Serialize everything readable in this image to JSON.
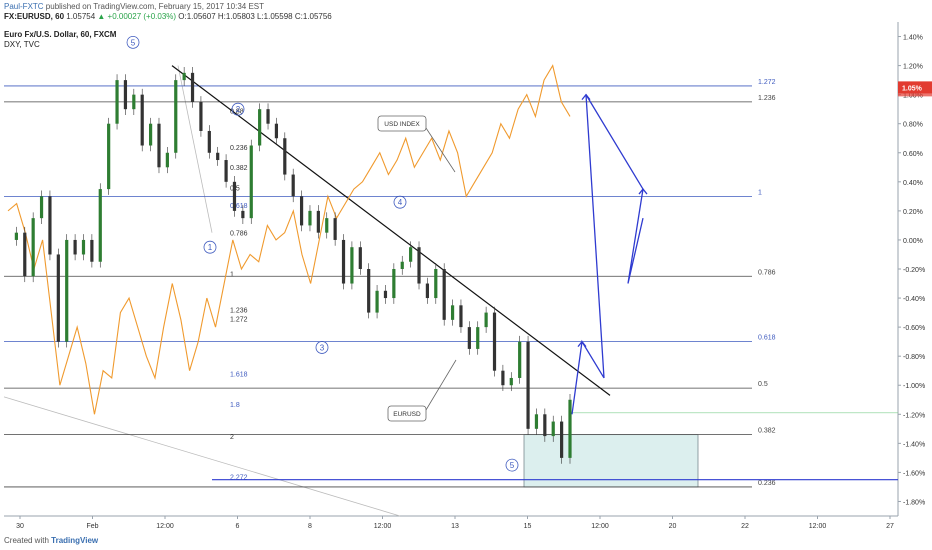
{
  "header": {
    "author": "Paul-FXTC",
    "published": "published on TradingView.com, February 15, 2017 10:34 EST",
    "symbol": "FX:EURUSD, 60",
    "last": "1.05754",
    "change": "▲ +0.00027 (+0.03%)",
    "ohlc": "O:1.05607 H:1.05803 L:1.05598 C:1.05756",
    "title": "Euro Fx/U.S. Dollar, 60, FXCM",
    "overlay": "DXY, TVC"
  },
  "footer": {
    "created_with": "Created with",
    "brand": "TradingView"
  },
  "chart_data": {
    "type": "line",
    "scale": "percent",
    "y_axis_ticks": [
      "1.40%",
      "1.20%",
      "1.00%",
      "0.80%",
      "0.60%",
      "0.40%",
      "0.20%",
      "0.00%",
      "-0.20%",
      "-0.40%",
      "-0.60%",
      "-0.80%",
      "-1.00%",
      "-1.20%",
      "-1.40%",
      "-1.60%",
      "-1.80%"
    ],
    "ylim": [
      -1.9,
      1.5
    ],
    "last_price_label": "1.05%",
    "last_price_value": 1.05,
    "x_axis_ticks": [
      "30",
      "Feb",
      "12:00",
      "6",
      "8",
      "12:00",
      "13",
      "15",
      "12:00",
      "20",
      "22",
      "12:00",
      "27"
    ],
    "fib_levels_right": [
      {
        "label": "1.272",
        "value": 1.06,
        "color": "#3f5bbf"
      },
      {
        "label": "1.236",
        "value": 0.95,
        "color": "#444444"
      },
      {
        "label": "1",
        "value": 0.3,
        "color": "#3f5bbf"
      },
      {
        "label": "0.786",
        "value": -0.25,
        "color": "#444444"
      },
      {
        "label": "0.618",
        "value": -0.7,
        "color": "#3f5bbf"
      },
      {
        "label": "0.5",
        "value": -1.02,
        "color": "#444444"
      },
      {
        "label": "0.382",
        "value": -1.34,
        "color": "#444444"
      },
      {
        "label": "0.236",
        "value": -1.7,
        "color": "#444444"
      }
    ],
    "fib_levels_left": [
      {
        "label": "0.88",
        "value": 0.87
      },
      {
        "label": "0.236",
        "value": 0.62
      },
      {
        "label": "0.382",
        "value": 0.48
      },
      {
        "label": "0.5",
        "value": 0.34
      },
      {
        "label": "0.618",
        "value": 0.22
      },
      {
        "label": "0.786",
        "value": 0.03
      },
      {
        "label": "1",
        "value": -0.25
      },
      {
        "label": "1.236",
        "value": -0.5
      },
      {
        "label": "1.272",
        "value": -0.56
      },
      {
        "label": "1.618",
        "value": -0.94
      },
      {
        "label": "1.8",
        "value": -1.15
      },
      {
        "label": "2",
        "value": -1.37
      },
      {
        "label": "2.272",
        "value": -1.65
      }
    ],
    "wave_labels": [
      {
        "label": "5",
        "x_index": 13,
        "value": 1.36
      },
      {
        "label": "2",
        "x_index": 24,
        "value": 0.9
      },
      {
        "label": "1",
        "x_index": 21,
        "value": -0.05
      },
      {
        "label": "3",
        "x_index": 32,
        "value": -0.74
      },
      {
        "label": "4",
        "x_index": 40,
        "value": 0.26
      },
      {
        "label": "5",
        "x_index": 51,
        "value": -1.55
      }
    ],
    "annotations": [
      "USD INDEX",
      "EURUSD"
    ],
    "series": [
      {
        "name": "EURUSD",
        "color": "#2e7d32",
        "values": [
          0.0,
          0.05,
          -0.25,
          0.15,
          0.3,
          -0.1,
          -0.7,
          0.0,
          -0.1,
          0.0,
          -0.15,
          0.35,
          0.8,
          1.1,
          0.9,
          1.0,
          0.65,
          0.8,
          0.5,
          0.6,
          1.1,
          1.15,
          0.95,
          0.75,
          0.6,
          0.55,
          0.4,
          0.2,
          0.15,
          0.65,
          0.9,
          0.8,
          0.7,
          0.45,
          0.3,
          0.1,
          0.2,
          0.05,
          0.15,
          0.0,
          -0.3,
          -0.05,
          -0.2,
          -0.5,
          -0.35,
          -0.4,
          -0.2,
          -0.15,
          -0.05,
          -0.3,
          -0.4,
          -0.2,
          -0.55,
          -0.45,
          -0.6,
          -0.75,
          -0.6,
          -0.5,
          -0.9,
          -1.0,
          -0.95,
          -0.7,
          -1.3,
          -1.2,
          -1.35,
          -1.25,
          -1.5,
          -1.1
        ]
      },
      {
        "name": "USD INDEX",
        "color": "#f09a2e",
        "values": [
          0.2,
          0.25,
          0.05,
          -0.2,
          0.0,
          -0.5,
          -1.0,
          -0.8,
          -0.6,
          -0.85,
          -1.2,
          -0.9,
          -0.95,
          -0.5,
          -0.4,
          -0.6,
          -0.8,
          -0.95,
          -0.6,
          -0.3,
          -0.55,
          -0.9,
          -0.7,
          -0.4,
          -0.6,
          -0.3,
          0.0,
          -0.2,
          -0.1,
          -0.15,
          0.1,
          0.0,
          0.05,
          0.2,
          -0.1,
          -0.3,
          0.0,
          0.3,
          0.15,
          0.25,
          0.35,
          0.4,
          0.5,
          0.6,
          0.45,
          0.55,
          0.7,
          0.5,
          0.6,
          0.7,
          0.55,
          0.75,
          0.6,
          0.3,
          0.4,
          0.5,
          0.6,
          0.8,
          0.7,
          0.9,
          1.0,
          0.85,
          1.1,
          1.2,
          0.95,
          0.85
        ]
      }
    ],
    "projection": {
      "name": "projection",
      "color": "#2f3bd0",
      "values": [
        -1.2,
        -0.7,
        -0.95,
        1.0,
        0.35,
        -0.3,
        0.15
      ]
    }
  }
}
